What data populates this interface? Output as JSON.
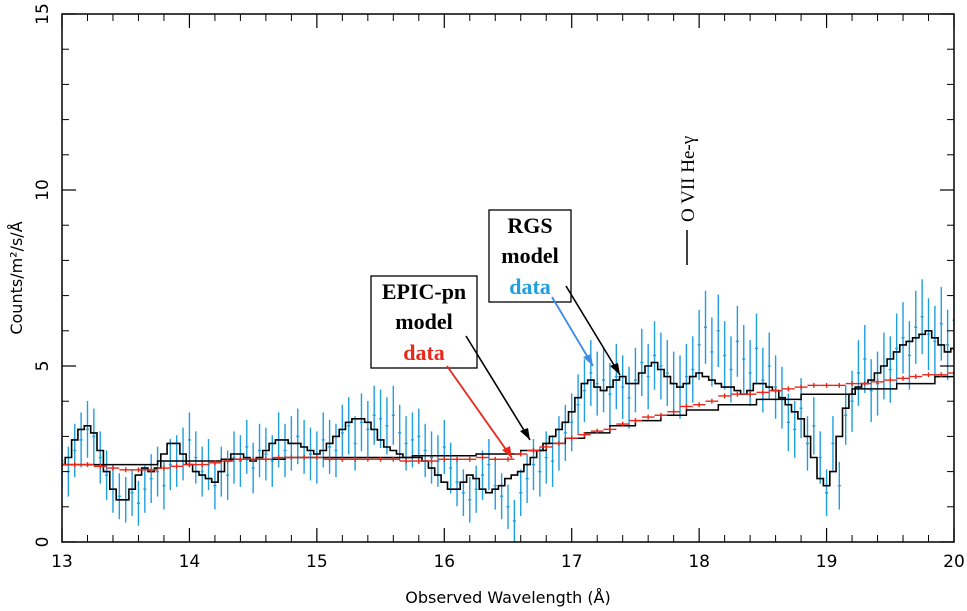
{
  "chart_data": {
    "type": "line",
    "xlabel": "Observed Wavelength (Å)",
    "ylabel": "Counts/m²/s/Å",
    "xlim": [
      13,
      20
    ],
    "ylim": [
      0,
      15
    ],
    "xticks": [
      13,
      14,
      15,
      16,
      17,
      18,
      19,
      20
    ],
    "yticks": [
      0,
      5,
      10,
      15
    ],
    "grid": false,
    "colors": {
      "rgs_data": "#1f9ee0",
      "epic_data": "#e8281a",
      "model": "#000000"
    },
    "series": [
      {
        "name": "RGS data",
        "x": [
          13.0,
          13.05,
          13.1,
          13.15,
          13.2,
          13.25,
          13.3,
          13.35,
          13.4,
          13.45,
          13.5,
          13.55,
          13.6,
          13.65,
          13.7,
          13.75,
          13.8,
          13.85,
          13.9,
          13.95,
          14.0,
          14.05,
          14.1,
          14.15,
          14.2,
          14.25,
          14.3,
          14.35,
          14.4,
          14.45,
          14.5,
          14.55,
          14.6,
          14.65,
          14.7,
          14.75,
          14.8,
          14.85,
          14.9,
          14.95,
          15.0,
          15.05,
          15.1,
          15.15,
          15.2,
          15.25,
          15.3,
          15.35,
          15.4,
          15.45,
          15.5,
          15.55,
          15.6,
          15.65,
          15.7,
          15.75,
          15.8,
          15.85,
          15.9,
          15.95,
          16.0,
          16.05,
          16.1,
          16.15,
          16.2,
          16.25,
          16.3,
          16.35,
          16.4,
          16.45,
          16.5,
          16.55,
          16.6,
          16.65,
          16.7,
          16.75,
          16.8,
          16.85,
          16.9,
          16.95,
          17.0,
          17.05,
          17.1,
          17.15,
          17.2,
          17.25,
          17.3,
          17.35,
          17.4,
          17.45,
          17.5,
          17.55,
          17.6,
          17.65,
          17.7,
          17.75,
          17.8,
          17.85,
          17.9,
          17.95,
          18.0,
          18.05,
          18.1,
          18.15,
          18.2,
          18.25,
          18.3,
          18.35,
          18.4,
          18.45,
          18.5,
          18.55,
          18.6,
          18.65,
          18.7,
          18.75,
          18.8,
          18.85,
          18.9,
          18.95,
          19.0,
          19.05,
          19.1,
          19.15,
          19.2,
          19.25,
          19.3,
          19.35,
          19.4,
          19.45,
          19.5,
          19.55,
          19.6,
          19.65,
          19.7,
          19.75,
          19.8,
          19.85,
          19.9,
          19.95,
          20.0
        ],
        "y": [
          2.3,
          2.0,
          2.6,
          2.9,
          3.2,
          3.0,
          2.4,
          1.9,
          1.5,
          1.3,
          1.2,
          1.4,
          1.1,
          1.5,
          1.8,
          2.0,
          1.6,
          2.2,
          2.3,
          2.5,
          2.9,
          2.4,
          2.0,
          2.2,
          1.6,
          2.0,
          1.9,
          2.4,
          2.3,
          2.7,
          2.1,
          2.6,
          2.5,
          2.3,
          2.9,
          2.6,
          2.8,
          3.0,
          2.7,
          2.5,
          2.4,
          2.9,
          2.7,
          2.6,
          3.1,
          3.3,
          2.8,
          3.4,
          3.2,
          3.6,
          3.5,
          3.3,
          3.6,
          3.1,
          2.8,
          2.9,
          3.0,
          2.6,
          2.4,
          2.3,
          2.7,
          2.1,
          1.7,
          1.4,
          1.2,
          1.5,
          1.9,
          2.2,
          1.6,
          1.3,
          1.0,
          0.6,
          1.4,
          1.8,
          2.2,
          2.0,
          2.4,
          2.3,
          2.8,
          3.1,
          3.4,
          3.9,
          4.3,
          4.8,
          4.5,
          4.6,
          4.2,
          4.7,
          4.4,
          4.1,
          4.6,
          5.1,
          4.7,
          5.3,
          5.0,
          4.8,
          4.5,
          4.4,
          4.7,
          4.9,
          5.6,
          6.1,
          5.4,
          6.0,
          5.3,
          4.9,
          5.7,
          5.2,
          4.8,
          5.5,
          4.6,
          5.0,
          4.4,
          4.1,
          3.4,
          3.2,
          3.8,
          2.8,
          3.3,
          2.4,
          1.4,
          2.8,
          1.6,
          3.6,
          4.0,
          4.8,
          5.2,
          4.3,
          4.5,
          5.0,
          4.9,
          5.5,
          5.8,
          5.3,
          6.1,
          6.4,
          5.9,
          5.7,
          6.2,
          5.6,
          6.3
        ]
      },
      {
        "name": "EPIC-pn data",
        "x": [
          13.0,
          13.1,
          13.2,
          13.3,
          13.4,
          13.5,
          13.6,
          13.7,
          13.8,
          13.9,
          14.0,
          14.1,
          14.2,
          14.3,
          14.4,
          14.5,
          14.6,
          14.7,
          14.8,
          14.9,
          15.0,
          15.1,
          15.2,
          15.3,
          15.4,
          15.5,
          15.6,
          15.7,
          15.8,
          15.9,
          16.0,
          16.1,
          16.2,
          16.3,
          16.4,
          16.5,
          16.6,
          16.7,
          16.8,
          16.9,
          17.0,
          17.1,
          17.2,
          17.3,
          17.4,
          17.5,
          17.6,
          17.7,
          17.8,
          17.9,
          18.0,
          18.1,
          18.2,
          18.3,
          18.4,
          18.5,
          18.6,
          18.7,
          18.8,
          18.9,
          19.0,
          19.1,
          19.2,
          19.3,
          19.4,
          19.5,
          19.6,
          19.7,
          19.8,
          19.9,
          20.0
        ],
        "y": [
          2.2,
          2.2,
          2.2,
          2.15,
          2.1,
          2.05,
          2.05,
          2.05,
          2.1,
          2.15,
          2.2,
          2.2,
          2.25,
          2.3,
          2.35,
          2.35,
          2.35,
          2.4,
          2.4,
          2.4,
          2.4,
          2.35,
          2.35,
          2.35,
          2.35,
          2.35,
          2.35,
          2.3,
          2.3,
          2.3,
          2.35,
          2.35,
          2.35,
          2.4,
          2.35,
          2.35,
          2.5,
          2.6,
          2.7,
          2.8,
          2.95,
          3.05,
          3.15,
          3.2,
          3.35,
          3.45,
          3.55,
          3.6,
          3.7,
          3.85,
          3.9,
          4.0,
          4.15,
          4.2,
          4.2,
          4.25,
          4.3,
          4.35,
          4.4,
          4.45,
          4.45,
          4.45,
          4.5,
          4.5,
          4.55,
          4.6,
          4.65,
          4.7,
          4.75,
          4.75,
          4.8
        ]
      },
      {
        "name": "RGS model",
        "x": [
          13.0,
          13.05,
          13.1,
          13.15,
          13.2,
          13.25,
          13.3,
          13.35,
          13.4,
          13.45,
          13.5,
          13.55,
          13.6,
          13.65,
          13.7,
          13.75,
          13.8,
          13.85,
          13.9,
          13.95,
          14.0,
          14.05,
          14.1,
          14.15,
          14.2,
          14.25,
          14.3,
          14.35,
          14.4,
          14.45,
          14.5,
          14.55,
          14.6,
          14.65,
          14.7,
          14.75,
          14.8,
          14.85,
          14.9,
          14.95,
          15.0,
          15.05,
          15.1,
          15.15,
          15.2,
          15.25,
          15.3,
          15.35,
          15.4,
          15.45,
          15.5,
          15.55,
          15.6,
          15.65,
          15.7,
          15.75,
          15.8,
          15.85,
          15.9,
          15.95,
          16.0,
          16.05,
          16.1,
          16.15,
          16.2,
          16.25,
          16.3,
          16.35,
          16.4,
          16.45,
          16.5,
          16.55,
          16.6,
          16.65,
          16.7,
          16.75,
          16.8,
          16.85,
          16.9,
          16.95,
          17.0,
          17.05,
          17.1,
          17.15,
          17.2,
          17.25,
          17.3,
          17.35,
          17.4,
          17.45,
          17.5,
          17.55,
          17.6,
          17.65,
          17.7,
          17.75,
          17.8,
          17.85,
          17.9,
          17.95,
          18.0,
          18.05,
          18.1,
          18.15,
          18.2,
          18.25,
          18.3,
          18.35,
          18.4,
          18.45,
          18.5,
          18.55,
          18.6,
          18.65,
          18.7,
          18.75,
          18.8,
          18.85,
          18.9,
          18.95,
          19.0,
          19.05,
          19.1,
          19.15,
          19.2,
          19.25,
          19.3,
          19.35,
          19.4,
          19.45,
          19.5,
          19.55,
          19.6,
          19.65,
          19.7,
          19.75,
          19.8,
          19.85,
          19.9,
          19.95,
          20.0
        ],
        "y": [
          2.2,
          2.4,
          2.9,
          3.2,
          3.3,
          3.1,
          2.6,
          2.0,
          1.5,
          1.2,
          1.2,
          1.5,
          1.9,
          2.1,
          2.0,
          2.1,
          2.5,
          2.8,
          2.8,
          2.5,
          2.2,
          2.0,
          1.9,
          1.8,
          1.7,
          2.0,
          2.3,
          2.5,
          2.5,
          2.4,
          2.3,
          2.4,
          2.6,
          2.8,
          2.9,
          2.9,
          2.8,
          2.8,
          2.7,
          2.6,
          2.5,
          2.6,
          2.8,
          3.0,
          3.2,
          3.4,
          3.5,
          3.5,
          3.4,
          3.2,
          2.9,
          2.7,
          2.6,
          2.5,
          2.4,
          2.4,
          2.4,
          2.3,
          2.1,
          1.9,
          1.7,
          1.5,
          1.5,
          1.7,
          1.9,
          1.8,
          1.5,
          1.4,
          1.5,
          1.6,
          1.8,
          1.9,
          2.0,
          2.2,
          2.4,
          2.6,
          2.8,
          3.0,
          3.2,
          3.4,
          3.7,
          4.1,
          4.5,
          4.6,
          4.4,
          4.3,
          4.4,
          4.6,
          4.7,
          4.5,
          4.5,
          4.8,
          5.0,
          5.1,
          4.9,
          4.7,
          4.5,
          4.4,
          4.5,
          4.7,
          4.8,
          4.7,
          4.6,
          4.5,
          4.4,
          4.4,
          4.3,
          4.2,
          4.3,
          4.5,
          4.5,
          4.4,
          4.3,
          4.1,
          3.9,
          3.7,
          3.5,
          3.0,
          2.4,
          1.8,
          1.6,
          2.0,
          3.0,
          3.8,
          4.2,
          4.4,
          4.5,
          4.6,
          4.8,
          5.0,
          5.2,
          5.4,
          5.6,
          5.7,
          5.8,
          5.9,
          6.0,
          5.8,
          5.6,
          5.4,
          5.5
        ]
      },
      {
        "name": "EPIC-pn model",
        "x": [
          13.0,
          13.5,
          14.0,
          14.5,
          15.0,
          15.5,
          16.0,
          16.5,
          16.7,
          16.9,
          17.0,
          17.2,
          17.4,
          17.6,
          17.8,
          18.0,
          18.3,
          18.6,
          19.0,
          19.4,
          19.7,
          20.0
        ],
        "y": [
          2.2,
          2.2,
          2.3,
          2.35,
          2.4,
          2.4,
          2.45,
          2.5,
          2.6,
          2.8,
          2.95,
          3.1,
          3.3,
          3.45,
          3.6,
          3.75,
          3.9,
          4.05,
          4.2,
          4.35,
          4.5,
          4.7
        ]
      }
    ],
    "annotations": [
      {
        "id": "line",
        "text": "O VII He-γ",
        "x": 17.9
      },
      {
        "id": "epic",
        "lines": [
          "EPIC-pn",
          "model",
          "data"
        ]
      },
      {
        "id": "rgs",
        "lines": [
          "RGS",
          "model",
          "data"
        ]
      }
    ]
  }
}
